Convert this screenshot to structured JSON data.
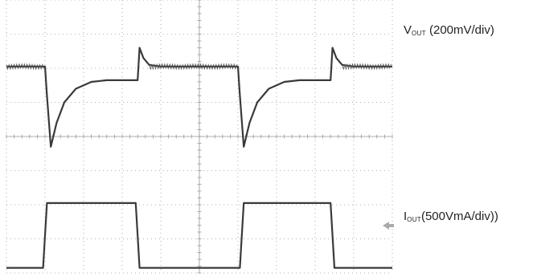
{
  "chart_data": {
    "type": "line",
    "title": "",
    "xlabel": "",
    "ylabel": "",
    "grid": true,
    "grid_divisions": {
      "x": 10,
      "y": 8
    },
    "xlim": [
      0,
      10
    ],
    "series": [
      {
        "name": "V_OUT",
        "scale": "200mV/div",
        "ylim": [
          0,
          8
        ],
        "x": [
          0,
          1.0,
          1.05,
          1.15,
          1.3,
          1.5,
          1.8,
          2.2,
          2.6,
          3.0,
          3.4,
          3.45,
          3.55,
          3.7,
          4.0,
          5.0,
          6.0,
          6.05,
          6.15,
          6.3,
          6.5,
          6.8,
          7.2,
          7.6,
          8.0,
          8.4,
          8.45,
          8.55,
          8.7,
          9.0,
          10.0
        ],
        "y": [
          6.05,
          6.05,
          5.2,
          3.7,
          4.4,
          5.0,
          5.4,
          5.6,
          5.65,
          5.65,
          5.65,
          6.6,
          6.3,
          6.1,
          6.05,
          6.05,
          6.05,
          5.2,
          3.7,
          4.4,
          5.0,
          5.4,
          5.6,
          5.65,
          5.65,
          5.65,
          6.6,
          6.3,
          6.1,
          6.05,
          6.05
        ],
        "color": "#3a3a3a"
      },
      {
        "name": "I_OUT",
        "scale": "500VmA/div",
        "ylim": [
          0,
          8
        ],
        "x": [
          0,
          0.95,
          1.05,
          3.35,
          3.45,
          6.05,
          6.15,
          8.4,
          8.5,
          10.0
        ],
        "y": [
          0.15,
          0.15,
          2.05,
          2.05,
          0.15,
          0.15,
          2.05,
          2.05,
          0.15,
          0.15
        ],
        "color": "#3a3a3a"
      }
    ],
    "annotations": {
      "vout": {
        "symbol": "V",
        "subscript": "OUT",
        "text": "(200mV/div)"
      },
      "iout": {
        "symbol": "I",
        "subscript": "OUT",
        "text": "(500VmA/div))"
      }
    }
  },
  "colors": {
    "grid": "#9a9a9a",
    "trace": "#3a3a3a",
    "noise": "#555555",
    "label": "#231f20"
  }
}
